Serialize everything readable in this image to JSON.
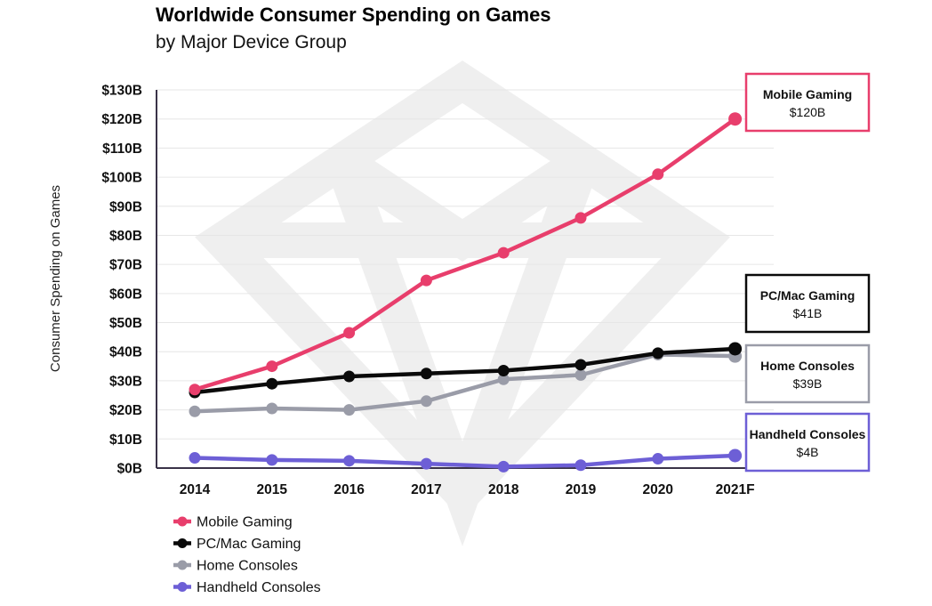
{
  "title": "Worldwide Consumer Spending on Games",
  "subtitle": "by Major Device Group",
  "chart_data": {
    "type": "line",
    "title": "Worldwide Consumer Spending on Games",
    "subtitle": "by Major Device Group",
    "xlabel": "",
    "ylabel": "Consumer Spending on Games",
    "categories": [
      "2014",
      "2015",
      "2016",
      "2017",
      "2018",
      "2019",
      "2020",
      "2021F"
    ],
    "ylim": [
      0,
      130
    ],
    "yticks": [
      0,
      10,
      20,
      30,
      40,
      50,
      60,
      70,
      80,
      90,
      100,
      110,
      120,
      130
    ],
    "ytick_labels": [
      "$0B",
      "$10B",
      "$20B",
      "$30B",
      "$40B",
      "$50B",
      "$60B",
      "$70B",
      "$80B",
      "$90B",
      "$100B",
      "$110B",
      "$120B",
      "$130B"
    ],
    "grid": true,
    "legend_position": "bottom-left",
    "series": [
      {
        "name": "Mobile Gaming",
        "color": "#e83e6c",
        "values": [
          27,
          35,
          46.5,
          64.5,
          74,
          86,
          101,
          120
        ],
        "callout": {
          "name": "Mobile Gaming",
          "value": "$120B"
        }
      },
      {
        "name": "PC/Mac Gaming",
        "color": "#0a0a0a",
        "values": [
          26,
          29,
          31.5,
          32.5,
          33.5,
          35.5,
          39.5,
          41
        ],
        "callout": {
          "name": "PC/Mac Gaming",
          "value": "$41B"
        }
      },
      {
        "name": "Home Consoles",
        "color": "#9a9ca8",
        "values": [
          19.5,
          20.5,
          20,
          23,
          30.5,
          32,
          39,
          38.5
        ],
        "callout": {
          "name": "Home Consoles",
          "value": "$39B"
        }
      },
      {
        "name": "Handheld Consoles",
        "color": "#6d5fd6",
        "values": [
          3.5,
          2.8,
          2.5,
          1.5,
          0.5,
          1,
          3.2,
          4.3
        ],
        "callout": {
          "name": "Handheld Consoles",
          "value": "$4B"
        }
      }
    ]
  }
}
